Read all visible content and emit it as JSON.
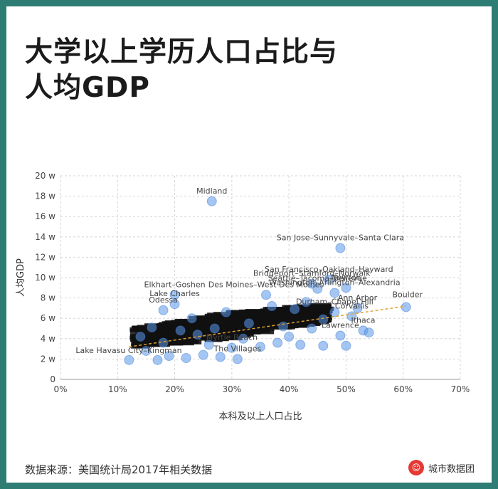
{
  "title_lines": [
    "大学以上学历人口占比与",
    "人均GDP"
  ],
  "footer": {
    "source": "数据来源：美国统计局2017年相关数据",
    "brand": "城市数据团"
  },
  "colors": {
    "frame": "#2e7d74",
    "point": "#5b97e8",
    "trend": "#e0a12f"
  },
  "chart_data": {
    "type": "scatter",
    "title": "",
    "xlabel": "本科及以上人口占比",
    "ylabel": "人均GDP",
    "xlim": [
      0,
      70
    ],
    "ylim": [
      0,
      20
    ],
    "x_ticks": [
      "0%",
      "10%",
      "20%",
      "30%",
      "40%",
      "50%",
      "60%",
      "70%"
    ],
    "y_ticks": [
      "0",
      "2 w",
      "4 w",
      "6 w",
      "8 w",
      "10 w",
      "12 w",
      "14 w",
      "16 w",
      "18 w",
      "20 w"
    ],
    "trendline": {
      "x": [
        12,
        60.5
      ],
      "y": [
        3.2,
        7.2
      ]
    },
    "points": [
      {
        "x": 26.5,
        "y": 17.5,
        "label": "Midland"
      },
      {
        "x": 49,
        "y": 12.9,
        "label": "San Jose–Sunnyvale–Santa Clara"
      },
      {
        "x": 47,
        "y": 9.8,
        "label": "San Francisco–Oakland–Hayward"
      },
      {
        "x": 44,
        "y": 9.4,
        "label": "Bridgeport–Stamford–Norwalk"
      },
      {
        "x": 45,
        "y": 8.9,
        "label": "Seattle–Tacoma–Bellevue"
      },
      {
        "x": 48,
        "y": 8.5,
        "label": "Washington–Arlington–Alexandria"
      },
      {
        "x": 50,
        "y": 9.0,
        "label": "Newton"
      },
      {
        "x": 60.5,
        "y": 7.1,
        "label": "Boulder"
      },
      {
        "x": 52,
        "y": 7.0,
        "label": "Ann Arbor"
      },
      {
        "x": 51,
        "y": 6.2,
        "label": "Corvallis"
      },
      {
        "x": 48,
        "y": 6.6,
        "label": "Durham–Chapel Hill"
      },
      {
        "x": 53,
        "y": 4.8,
        "label": "Ithaca"
      },
      {
        "x": 49,
        "y": 4.3,
        "label": "Lawrence"
      },
      {
        "x": 36,
        "y": 8.3,
        "label": "Des Moines–West Des Moines"
      },
      {
        "x": 20,
        "y": 8.3,
        "label": "Elkhart–Goshen"
      },
      {
        "x": 18,
        "y": 6.8,
        "label": "Odessa"
      },
      {
        "x": 20,
        "y": 7.4,
        "label": "Lake Charles"
      },
      {
        "x": 12,
        "y": 1.9,
        "label": "Lake Havasu City–Kingman"
      },
      {
        "x": 31,
        "y": 2.0,
        "label": "The Villages"
      },
      {
        "x": 30,
        "y": 3.1,
        "label": "Myrtle Beach"
      },
      {
        "x": 46,
        "y": 3.3,
        "label": ""
      },
      {
        "x": 42,
        "y": 3.4,
        "label": ""
      },
      {
        "x": 50,
        "y": 3.3,
        "label": ""
      },
      {
        "x": 54,
        "y": 4.6,
        "label": ""
      },
      {
        "x": 22,
        "y": 2.1,
        "label": ""
      },
      {
        "x": 17,
        "y": 1.9,
        "label": ""
      },
      {
        "x": 25,
        "y": 2.4,
        "label": ""
      },
      {
        "x": 28,
        "y": 2.2,
        "label": ""
      },
      {
        "x": 15,
        "y": 2.8,
        "label": ""
      },
      {
        "x": 19,
        "y": 2.3,
        "label": ""
      },
      {
        "x": 35,
        "y": 3.2,
        "label": ""
      },
      {
        "x": 38,
        "y": 3.6,
        "label": ""
      },
      {
        "x": 40,
        "y": 4.2,
        "label": ""
      },
      {
        "x": 44,
        "y": 5.0,
        "label": ""
      },
      {
        "x": 33,
        "y": 5.5,
        "label": ""
      },
      {
        "x": 27,
        "y": 5.0,
        "label": ""
      },
      {
        "x": 24,
        "y": 4.4,
        "label": ""
      },
      {
        "x": 21,
        "y": 4.8,
        "label": ""
      },
      {
        "x": 14,
        "y": 4.2,
        "label": ""
      },
      {
        "x": 16,
        "y": 5.1,
        "label": ""
      },
      {
        "x": 29,
        "y": 6.6,
        "label": ""
      },
      {
        "x": 37,
        "y": 7.2,
        "label": ""
      },
      {
        "x": 41,
        "y": 6.9,
        "label": ""
      },
      {
        "x": 43,
        "y": 7.6,
        "label": ""
      },
      {
        "x": 46,
        "y": 5.9,
        "label": ""
      },
      {
        "x": 39,
        "y": 5.2,
        "label": ""
      },
      {
        "x": 32,
        "y": 4.0,
        "label": ""
      },
      {
        "x": 26,
        "y": 3.4,
        "label": ""
      },
      {
        "x": 23,
        "y": 6.0,
        "label": ""
      },
      {
        "x": 18,
        "y": 3.6,
        "label": ""
      }
    ],
    "dense_cluster": {
      "x_range": [
        13,
        46
      ],
      "y_range": [
        3.3,
        7.8
      ]
    }
  }
}
